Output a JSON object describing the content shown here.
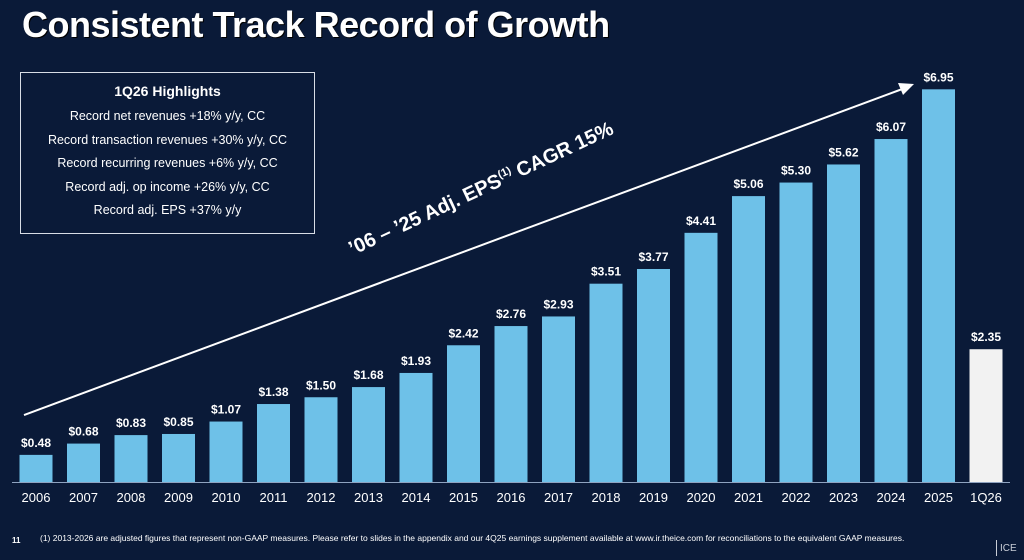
{
  "title": "Consistent Track Record of Growth",
  "highlights": {
    "title": "1Q26 Highlights",
    "items": [
      "Record net revenues +18% y/y, CC",
      "Record transaction revenues +30% y/y, CC",
      "Record recurring revenues +6% y/y, CC",
      "Record adj. op income +26% y/y, CC",
      "Record adj. EPS +37% y/y"
    ]
  },
  "annotation": {
    "prefix": "’06 – ’25 Adj. EPS",
    "superscript": "(1)",
    "suffix": " CAGR 15%"
  },
  "footnote": "(1) 2013-2026 are adjusted figures that represent non-GAAP measures. Please refer to slides in the appendix and our 4Q25 earnings supplement available at www.ir.theice.com for reconciliations to the equivalent GAAP measures.",
  "page_number": "11",
  "logo_text": "ICE",
  "colors": {
    "background": "#0a1a38",
    "bar": "#6ec1e8",
    "bar_highlight": "#f2f2f2",
    "text": "#ffffff"
  },
  "chart_data": {
    "type": "bar",
    "categories": [
      "2006",
      "2007",
      "2008",
      "2009",
      "2010",
      "2011",
      "2012",
      "2013",
      "2014",
      "2015",
      "2016",
      "2017",
      "2018",
      "2019",
      "2020",
      "2021",
      "2022",
      "2023",
      "2024",
      "2025",
      "1Q26"
    ],
    "values": [
      0.48,
      0.68,
      0.83,
      0.85,
      1.07,
      1.38,
      1.5,
      1.68,
      1.93,
      2.42,
      2.76,
      2.93,
      3.51,
      3.77,
      4.41,
      5.06,
      5.3,
      5.62,
      6.07,
      6.95,
      2.35
    ],
    "labels": [
      "$0.48",
      "$0.68",
      "$0.83",
      "$0.85",
      "$1.07",
      "$1.38",
      "$1.50",
      "$1.68",
      "$1.93",
      "$2.42",
      "$2.76",
      "$2.93",
      "$3.51",
      "$3.77",
      "$4.41",
      "$5.06",
      "$5.30",
      "$5.62",
      "$6.07",
      "$6.95",
      "$2.35"
    ],
    "highlight_category": "1Q26",
    "grid": false,
    "legend": "none"
  }
}
